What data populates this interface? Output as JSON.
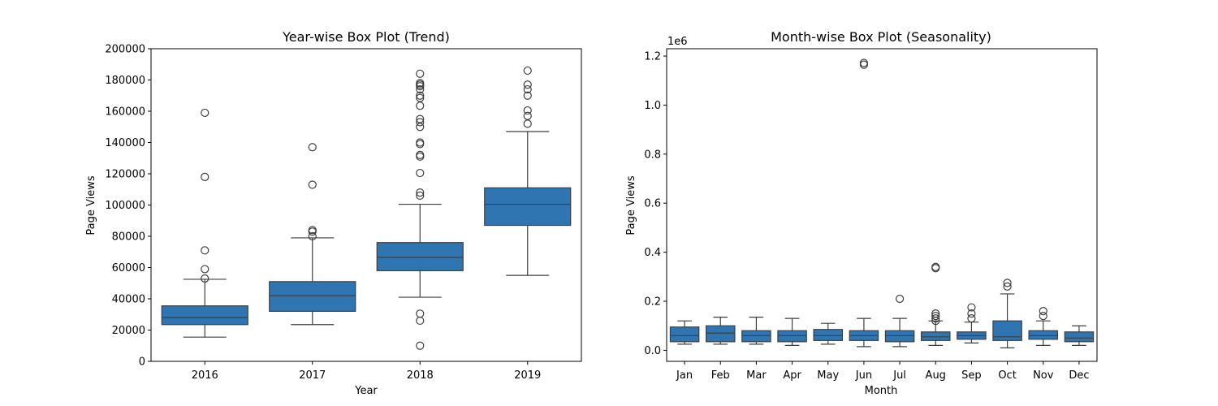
{
  "chart_data": [
    {
      "type": "box",
      "title": "Year-wise Box Plot (Trend)",
      "xlabel": "Year",
      "ylabel": "Page Views",
      "ylim": [
        0,
        200000
      ],
      "yticks": [
        0,
        20000,
        40000,
        60000,
        80000,
        100000,
        120000,
        140000,
        160000,
        180000,
        200000
      ],
      "ytick_labels": [
        "0",
        "20000",
        "40000",
        "60000",
        "80000",
        "100000",
        "120000",
        "140000",
        "160000",
        "180000",
        "200000"
      ],
      "offset_label": "",
      "color": "#2f75b2",
      "categories": [
        "2016",
        "2017",
        "2018",
        "2019"
      ],
      "boxes": [
        {
          "whisker_low": 15500,
          "q1": 23500,
          "median": 28000,
          "q3": 35500,
          "whisker_high": 52500,
          "outliers": [
            53000,
            59000,
            71000,
            118000,
            159000
          ]
        },
        {
          "whisker_low": 23500,
          "q1": 32000,
          "median": 42000,
          "q3": 51000,
          "whisker_high": 79000,
          "outliers": [
            80000,
            83000,
            84000,
            113000,
            137000
          ]
        },
        {
          "whisker_low": 41000,
          "q1": 58000,
          "median": 66500,
          "q3": 76000,
          "whisker_high": 100500,
          "outliers": [
            10000,
            26000,
            30500,
            106000,
            108000,
            120500,
            131000,
            132000,
            139000,
            140000,
            150000,
            153000,
            155000,
            163500,
            168500,
            170000,
            174000,
            176000,
            177000,
            178000,
            184000
          ]
        },
        {
          "whisker_low": 55000,
          "q1": 87000,
          "median": 100500,
          "q3": 111000,
          "whisker_high": 147000,
          "outliers": [
            152000,
            157000,
            160500,
            170000,
            174000,
            177000,
            186000
          ]
        }
      ]
    },
    {
      "type": "box",
      "title": "Month-wise Box Plot (Seasonality)",
      "xlabel": "Month",
      "ylabel": "Page Views",
      "ylim": [
        -0.045,
        1.23
      ],
      "yticks": [
        0.0,
        0.2,
        0.4,
        0.6,
        0.8,
        1.0,
        1.2
      ],
      "ytick_labels": [
        "0.0",
        "0.2",
        "0.4",
        "0.6",
        "0.8",
        "1.0",
        "1.2"
      ],
      "offset_label": "1e6",
      "color": "#2f75b2",
      "categories": [
        "Jan",
        "Feb",
        "Mar",
        "Apr",
        "May",
        "Jun",
        "Jul",
        "Aug",
        "Sep",
        "Oct",
        "Nov",
        "Dec"
      ],
      "boxes": [
        {
          "whisker_low": 0.025,
          "q1": 0.035,
          "median": 0.06,
          "q3": 0.095,
          "whisker_high": 0.12,
          "outliers": []
        },
        {
          "whisker_low": 0.025,
          "q1": 0.035,
          "median": 0.07,
          "q3": 0.1,
          "whisker_high": 0.135,
          "outliers": []
        },
        {
          "whisker_low": 0.025,
          "q1": 0.035,
          "median": 0.06,
          "q3": 0.08,
          "whisker_high": 0.135,
          "outliers": []
        },
        {
          "whisker_low": 0.02,
          "q1": 0.035,
          "median": 0.06,
          "q3": 0.08,
          "whisker_high": 0.13,
          "outliers": []
        },
        {
          "whisker_low": 0.025,
          "q1": 0.04,
          "median": 0.06,
          "q3": 0.085,
          "whisker_high": 0.11,
          "outliers": []
        },
        {
          "whisker_low": 0.015,
          "q1": 0.04,
          "median": 0.06,
          "q3": 0.08,
          "whisker_high": 0.13,
          "outliers": [
            1.165,
            1.172
          ]
        },
        {
          "whisker_low": 0.015,
          "q1": 0.035,
          "median": 0.06,
          "q3": 0.08,
          "whisker_high": 0.13,
          "outliers": [
            0.21
          ]
        },
        {
          "whisker_low": 0.02,
          "q1": 0.04,
          "median": 0.055,
          "q3": 0.075,
          "whisker_high": 0.12,
          "outliers": [
            0.12,
            0.13,
            0.14,
            0.15,
            0.335,
            0.34
          ]
        },
        {
          "whisker_low": 0.03,
          "q1": 0.045,
          "median": 0.06,
          "q3": 0.075,
          "whisker_high": 0.115,
          "outliers": [
            0.13,
            0.15,
            0.175
          ]
        },
        {
          "whisker_low": 0.01,
          "q1": 0.04,
          "median": 0.055,
          "q3": 0.12,
          "whisker_high": 0.23,
          "outliers": [
            0.26,
            0.275
          ]
        },
        {
          "whisker_low": 0.02,
          "q1": 0.045,
          "median": 0.06,
          "q3": 0.08,
          "whisker_high": 0.12,
          "outliers": [
            0.14,
            0.16
          ]
        },
        {
          "whisker_low": 0.02,
          "q1": 0.035,
          "median": 0.05,
          "q3": 0.075,
          "whisker_high": 0.1,
          "outliers": []
        }
      ]
    }
  ]
}
